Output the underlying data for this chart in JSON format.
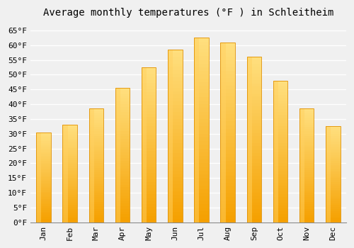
{
  "title": "Average monthly temperatures (°F ) in Schleitheim",
  "months": [
    "Jan",
    "Feb",
    "Mar",
    "Apr",
    "May",
    "Jun",
    "Jul",
    "Aug",
    "Sep",
    "Oct",
    "Nov",
    "Dec"
  ],
  "values": [
    30.5,
    33.0,
    38.5,
    45.5,
    52.5,
    58.5,
    62.5,
    61.0,
    56.0,
    48.0,
    38.5,
    32.5
  ],
  "bar_color_bottom": "#F5A000",
  "bar_color_top": "#FFE080",
  "bar_color_left": "#FFD060",
  "bar_edge_color": "#E09000",
  "ylim": [
    0,
    68
  ],
  "yticks": [
    0,
    5,
    10,
    15,
    20,
    25,
    30,
    35,
    40,
    45,
    50,
    55,
    60,
    65
  ],
  "ytick_labels": [
    "0°F",
    "5°F",
    "10°F",
    "15°F",
    "20°F",
    "25°F",
    "30°F",
    "35°F",
    "40°F",
    "45°F",
    "50°F",
    "55°F",
    "60°F",
    "65°F"
  ],
  "background_color": "#F0F0F0",
  "grid_color": "#FFFFFF",
  "title_fontsize": 10,
  "tick_fontsize": 8,
  "font_family": "monospace",
  "bar_width": 0.55
}
